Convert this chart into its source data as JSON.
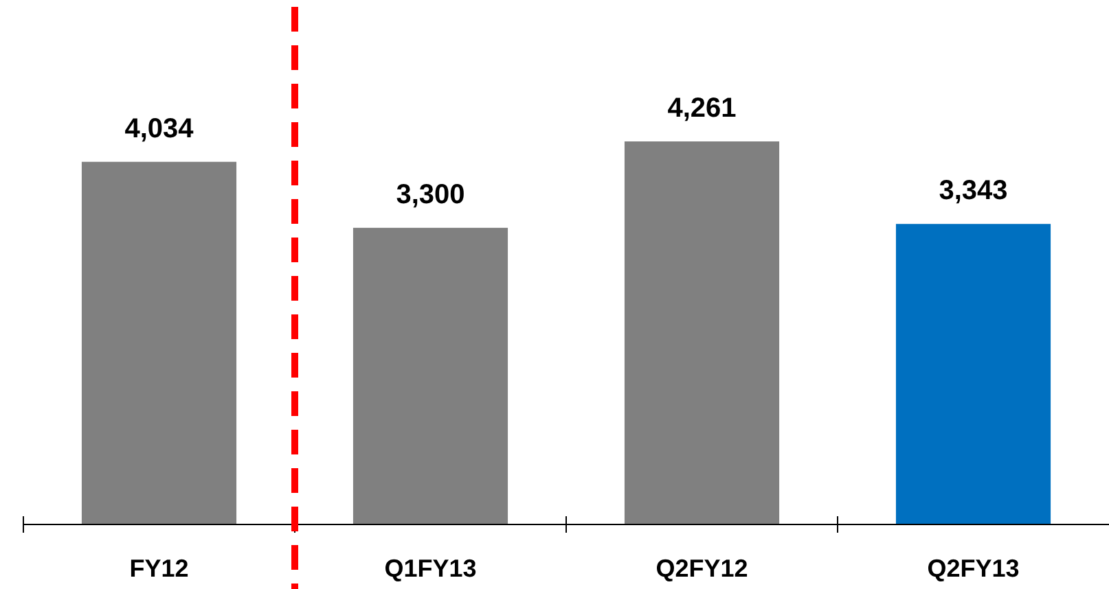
{
  "chart_data": {
    "type": "bar",
    "categories": [
      "FY12",
      "Q1FY13",
      "Q2FY12",
      "Q2FY13"
    ],
    "values": [
      4034,
      3300,
      4261,
      3343
    ],
    "value_labels": [
      "4,034",
      "3,300",
      "4,261",
      "3,343"
    ],
    "colors": [
      "#808080",
      "#808080",
      "#808080",
      "#0070c0"
    ]
  }
}
